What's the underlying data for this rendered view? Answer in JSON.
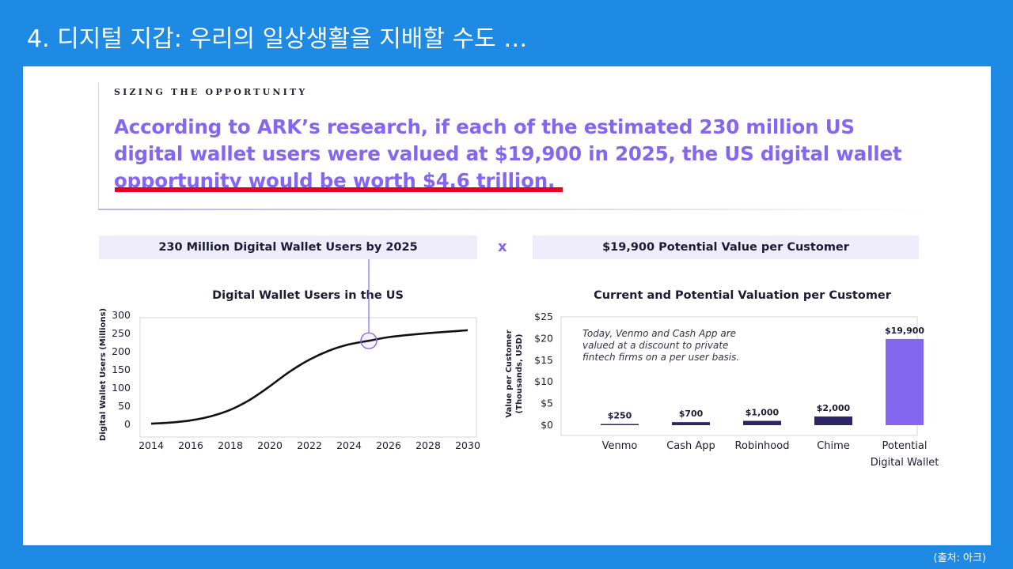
{
  "slide": {
    "title": "4. 디지털 지갑: 우리의 일상생활을 지배할 수도 …",
    "source": "(출처: 아크)"
  },
  "eyebrow": "SIZING THE OPPORTUNITY",
  "headline": {
    "part1": "According to ARK’s research, if each of the estimated 230 million US digital wallet users were valued at $19,900 in 2025, the US digital wallet ",
    "underlined": "opportunity would be worth $4.6 trillion."
  },
  "colors": {
    "accent": "#8467ee",
    "highlight": "#e8001c",
    "dark_bar": "#2d2566",
    "potential_bar": "#8467ee"
  },
  "bands": {
    "left": "230 Million Digital Wallet Users by 2025",
    "operator": "x",
    "right": "$19,900 Potential Value per Customer"
  },
  "chart_data": [
    {
      "type": "line",
      "title": "Digital Wallet Users in the US",
      "xlabel": "",
      "ylabel": "Digital Wallet Users (Millions)",
      "xlim": [
        2014,
        2030
      ],
      "ylim": [
        0,
        300
      ],
      "x_ticks": [
        "2014",
        "2016",
        "2018",
        "2020",
        "2022",
        "2024",
        "2026",
        "2028",
        "2030"
      ],
      "y_ticks": [
        "0",
        "50",
        "100",
        "150",
        "200",
        "250",
        "300"
      ],
      "series": [
        {
          "x": [
            2014,
            2015,
            2016,
            2017,
            2018,
            2019,
            2020,
            2021,
            2022,
            2023,
            2024,
            2025,
            2026,
            2027,
            2028,
            2029,
            2030
          ],
          "values": [
            2,
            5,
            11,
            22,
            40,
            68,
            105,
            145,
            178,
            203,
            220,
            230,
            240,
            246,
            251,
            255,
            259
          ]
        }
      ],
      "highlight": {
        "x": 2025,
        "y": 230
      },
      "grid": false
    },
    {
      "type": "bar",
      "title": "Current and Potential Valuation per Customer",
      "xlabel": "",
      "ylabel": "Value per Customer (Thousands, USD)",
      "ylim": [
        0,
        25
      ],
      "y_ticks": [
        "$0",
        "$5",
        "$10",
        "$15",
        "$20",
        "$25"
      ],
      "categories": [
        "Venmo",
        "Cash App",
        "Robinhood",
        "Chime",
        "Potential Digital Wallet"
      ],
      "values": [
        0.25,
        0.7,
        1.0,
        2.0,
        19.9
      ],
      "value_labels": [
        "$250",
        "$700",
        "$1,000",
        "$2,000",
        "$19,900"
      ],
      "annotation": "Today, Venmo and Cash App are valued at a discount to private fintech firms on a per user basis."
    }
  ]
}
